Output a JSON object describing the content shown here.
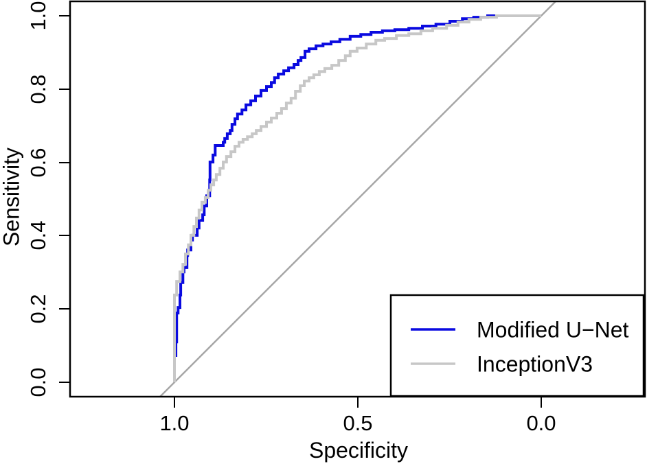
{
  "chart_data": {
    "type": "line",
    "subtype": "roc-curve-step",
    "title": "",
    "xlabel": "Specificity",
    "ylabel": "Sensitivity",
    "x_axis_reversed": true,
    "xlim": [
      1.0,
      0.0
    ],
    "ylim": [
      0.0,
      1.0
    ],
    "grid": false,
    "x_ticks": [
      {
        "label": "1.0",
        "value": 1.0
      },
      {
        "label": "0.5",
        "value": 0.5
      },
      {
        "label": "0.0",
        "value": 0.0
      }
    ],
    "y_ticks": [
      {
        "label": "0.0",
        "value": 0.0
      },
      {
        "label": "0.2",
        "value": 0.2
      },
      {
        "label": "0.4",
        "value": 0.4
      },
      {
        "label": "0.6",
        "value": 0.6
      },
      {
        "label": "0.8",
        "value": 0.8
      },
      {
        "label": "1.0",
        "value": 1.0
      }
    ],
    "reference_line": {
      "description": "diagonal chance line from (spec 1, sens 0) to (spec 0, sens 1)",
      "color": "#a6a6a6"
    },
    "legend": {
      "position": "bottomright",
      "entries": [
        {
          "label": "Modified U−Net",
          "color": "#0a0ae0"
        },
        {
          "label": "InceptionV3",
          "color": "#c7c7c7"
        }
      ]
    },
    "series": [
      {
        "name": "Modified U-Net",
        "color": "#0a0ae0",
        "points_spec_sens": [
          [
            1.0,
            0.0
          ],
          [
            0.996,
            0.073
          ],
          [
            0.994,
            0.11
          ],
          [
            0.994,
            0.15
          ],
          [
            0.99,
            0.189
          ],
          [
            0.985,
            0.204
          ],
          [
            0.983,
            0.238
          ],
          [
            0.977,
            0.272
          ],
          [
            0.974,
            0.301
          ],
          [
            0.966,
            0.313
          ],
          [
            0.964,
            0.346
          ],
          [
            0.955,
            0.361
          ],
          [
            0.951,
            0.388
          ],
          [
            0.938,
            0.401
          ],
          [
            0.933,
            0.421
          ],
          [
            0.923,
            0.442
          ],
          [
            0.919,
            0.457
          ],
          [
            0.912,
            0.481
          ],
          [
            0.904,
            0.509
          ],
          [
            0.903,
            0.552
          ],
          [
            0.903,
            0.594
          ],
          [
            0.895,
            0.601
          ],
          [
            0.889,
            0.62
          ],
          [
            0.889,
            0.64
          ],
          [
            0.867,
            0.646
          ],
          [
            0.863,
            0.655
          ],
          [
            0.856,
            0.665
          ],
          [
            0.848,
            0.678
          ],
          [
            0.843,
            0.687
          ],
          [
            0.835,
            0.704
          ],
          [
            0.828,
            0.719
          ],
          [
            0.816,
            0.732
          ],
          [
            0.805,
            0.743
          ],
          [
            0.792,
            0.757
          ],
          [
            0.779,
            0.768
          ],
          [
            0.764,
            0.781
          ],
          [
            0.749,
            0.796
          ],
          [
            0.736,
            0.807
          ],
          [
            0.727,
            0.818
          ],
          [
            0.717,
            0.831
          ],
          [
            0.702,
            0.841
          ],
          [
            0.689,
            0.85
          ],
          [
            0.674,
            0.858
          ],
          [
            0.663,
            0.867
          ],
          [
            0.655,
            0.878
          ],
          [
            0.644,
            0.886
          ],
          [
            0.633,
            0.903
          ],
          [
            0.614,
            0.91
          ],
          [
            0.595,
            0.918
          ],
          [
            0.573,
            0.923
          ],
          [
            0.549,
            0.929
          ],
          [
            0.521,
            0.936
          ],
          [
            0.492,
            0.944
          ],
          [
            0.464,
            0.949
          ],
          [
            0.433,
            0.955
          ],
          [
            0.399,
            0.959
          ],
          [
            0.361,
            0.962
          ],
          [
            0.324,
            0.966
          ],
          [
            0.287,
            0.972
          ],
          [
            0.249,
            0.977
          ],
          [
            0.215,
            0.985
          ],
          [
            0.184,
            0.992
          ],
          [
            0.146,
            0.996
          ],
          [
            0.118,
            1.0
          ],
          [
            0.0,
            1.0
          ]
        ]
      },
      {
        "name": "InceptionV3",
        "color": "#c7c7c7",
        "points_spec_sens": [
          [
            1.0,
            0.0
          ],
          [
            1.0,
            0.191
          ],
          [
            0.994,
            0.238
          ],
          [
            0.985,
            0.275
          ],
          [
            0.977,
            0.301
          ],
          [
            0.97,
            0.322
          ],
          [
            0.962,
            0.35
          ],
          [
            0.955,
            0.375
          ],
          [
            0.947,
            0.401
          ],
          [
            0.94,
            0.425
          ],
          [
            0.933,
            0.448
          ],
          [
            0.925,
            0.47
          ],
          [
            0.916,
            0.491
          ],
          [
            0.908,
            0.504
          ],
          [
            0.901,
            0.524
          ],
          [
            0.893,
            0.539
          ],
          [
            0.886,
            0.552
          ],
          [
            0.876,
            0.567
          ],
          [
            0.867,
            0.584
          ],
          [
            0.858,
            0.601
          ],
          [
            0.846,
            0.616
          ],
          [
            0.835,
            0.629
          ],
          [
            0.824,
            0.644
          ],
          [
            0.813,
            0.655
          ],
          [
            0.801,
            0.663
          ],
          [
            0.788,
            0.67
          ],
          [
            0.777,
            0.678
          ],
          [
            0.764,
            0.687
          ],
          [
            0.749,
            0.698
          ],
          [
            0.736,
            0.71
          ],
          [
            0.721,
            0.721
          ],
          [
            0.708,
            0.734
          ],
          [
            0.695,
            0.747
          ],
          [
            0.682,
            0.762
          ],
          [
            0.67,
            0.775
          ],
          [
            0.657,
            0.794
          ],
          [
            0.646,
            0.809
          ],
          [
            0.633,
            0.822
          ],
          [
            0.62,
            0.831
          ],
          [
            0.605,
            0.839
          ],
          [
            0.59,
            0.848
          ],
          [
            0.571,
            0.856
          ],
          [
            0.552,
            0.865
          ],
          [
            0.534,
            0.878
          ],
          [
            0.521,
            0.891
          ],
          [
            0.502,
            0.903
          ],
          [
            0.477,
            0.912
          ],
          [
            0.451,
            0.923
          ],
          [
            0.427,
            0.933
          ],
          [
            0.395,
            0.938
          ],
          [
            0.361,
            0.946
          ],
          [
            0.328,
            0.951
          ],
          [
            0.296,
            0.959
          ],
          [
            0.258,
            0.966
          ],
          [
            0.227,
            0.974
          ],
          [
            0.197,
            0.983
          ],
          [
            0.165,
            0.99
          ],
          [
            0.122,
            0.996
          ],
          [
            0.071,
            1.0
          ],
          [
            0.0,
            1.0
          ]
        ]
      }
    ]
  }
}
